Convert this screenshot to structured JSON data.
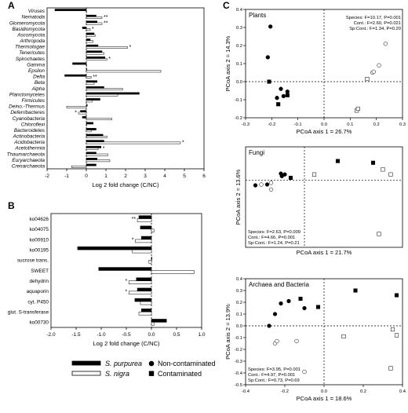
{
  "panel_letters": [
    "A",
    "B",
    "C"
  ],
  "legend": {
    "species": [
      {
        "name": "S. purpurea",
        "fill": "#000000"
      },
      {
        "name": "S. nigra",
        "fill": "#ffffff"
      }
    ],
    "treatment": [
      {
        "name": "Non-contaminated",
        "marker": "circle"
      },
      {
        "name": "Contaminated",
        "marker": "square"
      }
    ]
  },
  "chart_data": [
    {
      "type": "bar",
      "panel": "A",
      "orientation": "horizontal",
      "xlabel": "Log 2 fold change (C/NC)",
      "xlim": [
        -2,
        6
      ],
      "xticks": [
        -2,
        -1,
        0,
        1,
        2,
        3,
        4,
        5,
        6
      ],
      "categories": [
        "Viruses",
        "Nematoda",
        "Glomeromycota",
        "Basidiomycota",
        "Ascomycota",
        "Arthropoda",
        "Thermotogae",
        "Tenericutes",
        "Spirochaetes",
        "Gamma",
        "Epsilon",
        "Delta",
        "Beta",
        "Alpha",
        "Planctomycetes",
        "Firmicutes",
        "Deino.-Thermus",
        "Deferribacteres",
        "Cyanobacteria",
        "Chloroflexi",
        "Bacteroidetes",
        "Actinobacteria",
        "Acidobacteria",
        "Acetothermia",
        "Thaumarchaeota",
        "Euryarchaeota",
        "Crenarchaeota"
      ],
      "series": [
        {
          "name": "S. purpurea",
          "values": [
            -1.6,
            0.5,
            0.55,
            -0.2,
            0.4,
            0.2,
            0.6,
            0.8,
            0.95,
            -0.7,
            0.0,
            -1.1,
            0.55,
            0.9,
            2.7,
            0.7,
            0.05,
            -0.3,
            -0.2,
            0.35,
            0.5,
            0.85,
            0.9,
            0.75,
            0.5,
            0.55,
            0.5
          ]
        },
        {
          "name": "S. nigra",
          "values": [
            0.0,
            0.8,
            0.8,
            0.2,
            0.45,
            0.35,
            2.1,
            0.9,
            1.05,
            0.0,
            3.8,
            0.25,
            0.4,
            1.85,
            1.6,
            0.3,
            -1.0,
            -0.4,
            1.3,
            0.0,
            0.25,
            1.05,
            4.8,
            0.6,
            1.1,
            1.2,
            -0.75
          ]
        }
      ],
      "annotations": [
        {
          "category": "Nematoda",
          "text": "**"
        },
        {
          "category": "Glomeromycota",
          "text": "**"
        },
        {
          "category": "Basidiomycota",
          "text": "*"
        },
        {
          "category": "Thermotogae",
          "text": "*"
        },
        {
          "category": "Spirochaetes",
          "text": "*"
        },
        {
          "category": "Delta",
          "text": "**"
        },
        {
          "category": "Deferribacteres",
          "text": "*"
        },
        {
          "category": "Acidobacteria",
          "text": "*"
        },
        {
          "category": "Acetothermia",
          "text": "*"
        }
      ]
    },
    {
      "type": "bar",
      "panel": "B",
      "orientation": "horizontal",
      "xlabel": "Log 2 fold change (C/NC)",
      "xlim": [
        -2.0,
        1.0
      ],
      "xticks": [
        -2.0,
        -1.5,
        -1.0,
        -0.5,
        0.0,
        0.5,
        1.0
      ],
      "xtick_labels": [
        "-2.0",
        "-1.5",
        "-1.0",
        "-0.5",
        "0.0",
        "0.5",
        "1.0"
      ],
      "categories": [
        "ko04626",
        "ko04075",
        "ko00910",
        "ko00195",
        "sucrose trans.",
        "SWEET",
        "dehydrin",
        "aquaporin",
        "cyt. P450",
        "glut. S-transferase",
        "ko00730"
      ],
      "series": [
        {
          "name": "S. purpurea",
          "values": [
            -0.25,
            -0.22,
            -0.2,
            -1.47,
            0.0,
            -1.05,
            -0.3,
            -0.28,
            -0.33,
            -0.2,
            0.3
          ]
        },
        {
          "name": "S. nigra",
          "values": [
            -0.28,
            0.05,
            -0.32,
            -0.38,
            -0.05,
            0.85,
            -0.45,
            -0.45,
            -0.22,
            -0.25,
            0.05
          ]
        }
      ],
      "annotations": [
        {
          "category": "ko04626",
          "text": "**"
        },
        {
          "category": "ko00910",
          "text": "*"
        },
        {
          "category": "dehydrin",
          "text": "*"
        },
        {
          "category": "aquaporin",
          "text": "*"
        }
      ]
    },
    {
      "type": "scatter",
      "panel": "C",
      "title": "Plants",
      "xlabel": "PCoA axis 1 = 26.7%",
      "ylabel": "PCoA axis 2 = 14.3%",
      "xlim": [
        -0.3,
        0.3
      ],
      "ylim": [
        -0.2,
        0.4
      ],
      "xticks": [
        -0.3,
        -0.2,
        -0.1,
        0.0,
        0.1,
        0.2,
        0.3
      ],
      "xtick_labels": [
        "-0.3",
        "-0.2",
        "-0.1",
        "0.0",
        "0.1",
        "0.2",
        "0.3"
      ],
      "yticks": [
        -0.2,
        -0.1,
        0.0,
        0.1,
        0.2,
        0.3,
        0.4
      ],
      "ytick_labels": [
        "-0.2",
        "-0.1",
        "0.0",
        "0.1",
        "0.2",
        "0.3",
        "0.4"
      ],
      "stats": [
        "Species: F=10.17, P=0.001",
        "Cont.: F=2.60, P=0.021",
        "Sp:Cont.: F=1.34, P=0.20"
      ],
      "points": [
        {
          "x": -0.205,
          "y": 0.305,
          "shape": "circle",
          "fill": "black"
        },
        {
          "x": -0.215,
          "y": 0.135,
          "shape": "circle",
          "fill": "black"
        },
        {
          "x": -0.165,
          "y": -0.04,
          "shape": "circle",
          "fill": "black"
        },
        {
          "x": -0.155,
          "y": -0.08,
          "shape": "circle",
          "fill": "black"
        },
        {
          "x": -0.14,
          "y": -0.055,
          "shape": "circle",
          "fill": "black"
        },
        {
          "x": -0.18,
          "y": -0.09,
          "shape": "circle",
          "fill": "black"
        },
        {
          "x": -0.21,
          "y": 0.0,
          "shape": "square",
          "fill": "black"
        },
        {
          "x": -0.175,
          "y": -0.125,
          "shape": "square",
          "fill": "black"
        },
        {
          "x": -0.14,
          "y": -0.075,
          "shape": "square",
          "fill": "black"
        },
        {
          "x": 0.235,
          "y": 0.21,
          "shape": "circle",
          "fill": "white"
        },
        {
          "x": 0.21,
          "y": 0.09,
          "shape": "circle",
          "fill": "white"
        },
        {
          "x": 0.185,
          "y": 0.05,
          "shape": "circle",
          "fill": "white"
        },
        {
          "x": 0.19,
          "y": 0.055,
          "shape": "circle",
          "fill": "white"
        },
        {
          "x": 0.165,
          "y": 0.015,
          "shape": "square",
          "fill": "white"
        },
        {
          "x": 0.125,
          "y": -0.16,
          "shape": "square",
          "fill": "white"
        },
        {
          "x": 0.13,
          "y": -0.15,
          "shape": "square",
          "fill": "white"
        }
      ]
    },
    {
      "type": "scatter",
      "panel": "C",
      "title": "Fungi",
      "xlabel": "PCoA axis 1 = 21.7%",
      "ylabel": "PCoA axis 2 = 13.6%",
      "xlim": [
        -0.3,
        0.5
      ],
      "ylim": [
        -0.8,
        0.4
      ],
      "stats": [
        "Species: F=2.63, P=0.009",
        "Cont.: F=4.66, P=0.001",
        "Sp:Cont.: F=1.24, P=0.21"
      ],
      "points": [
        {
          "x": -0.12,
          "y": 0.08,
          "shape": "circle",
          "fill": "black"
        },
        {
          "x": -0.1,
          "y": 0.07,
          "shape": "circle",
          "fill": "black"
        },
        {
          "x": -0.115,
          "y": 0.05,
          "shape": "circle",
          "fill": "black"
        },
        {
          "x": -0.25,
          "y": -0.06,
          "shape": "circle",
          "fill": "black"
        },
        {
          "x": -0.19,
          "y": -0.05,
          "shape": "circle",
          "fill": "black"
        },
        {
          "x": -0.07,
          "y": 0.03,
          "shape": "square",
          "fill": "black"
        },
        {
          "x": 0.17,
          "y": 0.23,
          "shape": "square",
          "fill": "black"
        },
        {
          "x": 0.35,
          "y": 0.21,
          "shape": "square",
          "fill": "black"
        },
        {
          "x": -0.17,
          "y": -0.03,
          "shape": "circle",
          "fill": "white"
        },
        {
          "x": -0.22,
          "y": -0.05,
          "shape": "circle",
          "fill": "white"
        },
        {
          "x": -0.17,
          "y": -0.11,
          "shape": "circle",
          "fill": "white"
        },
        {
          "x": 0.05,
          "y": 0.07,
          "shape": "square",
          "fill": "white"
        },
        {
          "x": 0.4,
          "y": 0.13,
          "shape": "square",
          "fill": "white"
        },
        {
          "x": 0.44,
          "y": 0.07,
          "shape": "square",
          "fill": "white"
        },
        {
          "x": 0.38,
          "y": -0.64,
          "shape": "square",
          "fill": "white"
        }
      ]
    },
    {
      "type": "scatter",
      "panel": "C",
      "title": "Archaea and Bacteria",
      "xlabel": "PCoA axis 1 = 18.6%",
      "ylabel": "PCoA axis 2 = 13.9%",
      "xlim": [
        -0.4,
        0.4
      ],
      "ylim": [
        -0.5,
        0.4
      ],
      "xticks": [
        -0.4,
        -0.2,
        0.0,
        0.2,
        0.4
      ],
      "xtick_labels": [
        "-0.4",
        "-0.2",
        "0.0",
        "0.2",
        "0.4"
      ],
      "yticks": [
        -0.5,
        -0.4,
        -0.3,
        -0.2,
        -0.1,
        0.0,
        0.1,
        0.2,
        0.3,
        0.4
      ],
      "ytick_labels": [
        "-0.5",
        "-0.4",
        "-0.3",
        "-0.2",
        "-0.1",
        "0.0",
        "0.1",
        "0.2",
        "0.3",
        "0.4"
      ],
      "stats": [
        "Species: F=3.95, P=0.001",
        "Cont.: F=4.97, P=0.001",
        "Sp:Cont.: F=0.73, P=0.69"
      ],
      "points": [
        {
          "x": -0.22,
          "y": 0.19,
          "shape": "circle",
          "fill": "black"
        },
        {
          "x": -0.25,
          "y": 0.1,
          "shape": "circle",
          "fill": "black"
        },
        {
          "x": -0.18,
          "y": 0.21,
          "shape": "circle",
          "fill": "black"
        },
        {
          "x": -0.28,
          "y": 0.0,
          "shape": "circle",
          "fill": "black"
        },
        {
          "x": -0.1,
          "y": 0.15,
          "shape": "circle",
          "fill": "black"
        },
        {
          "x": -0.12,
          "y": 0.23,
          "shape": "square",
          "fill": "black"
        },
        {
          "x": -0.03,
          "y": 0.16,
          "shape": "square",
          "fill": "black"
        },
        {
          "x": 0.16,
          "y": 0.3,
          "shape": "square",
          "fill": "black"
        },
        {
          "x": 0.37,
          "y": 0.26,
          "shape": "square",
          "fill": "black"
        },
        {
          "x": -0.25,
          "y": -0.15,
          "shape": "circle",
          "fill": "white"
        },
        {
          "x": -0.24,
          "y": -0.13,
          "shape": "circle",
          "fill": "white"
        },
        {
          "x": -0.14,
          "y": -0.13,
          "shape": "circle",
          "fill": "white"
        },
        {
          "x": -0.1,
          "y": -0.39,
          "shape": "circle",
          "fill": "white"
        },
        {
          "x": 0.1,
          "y": -0.09,
          "shape": "square",
          "fill": "white"
        },
        {
          "x": 0.35,
          "y": -0.03,
          "shape": "square",
          "fill": "white"
        },
        {
          "x": 0.37,
          "y": -0.08,
          "shape": "square",
          "fill": "white"
        },
        {
          "x": 0.34,
          "y": -0.36,
          "shape": "square",
          "fill": "white"
        }
      ]
    }
  ]
}
